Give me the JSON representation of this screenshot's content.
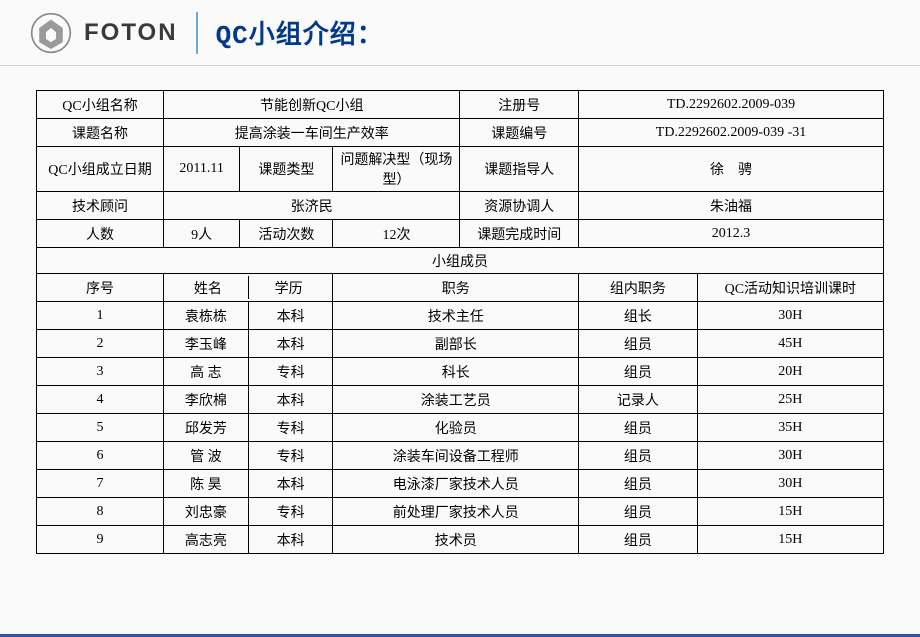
{
  "header": {
    "logo_text": "FOTON",
    "title": "QC小组介绍："
  },
  "info": {
    "group_name_label": "QC小组名称",
    "group_name": "节能创新QC小组",
    "reg_no_label": "注册号",
    "reg_no": "TD.2292602.2009-039",
    "topic_name_label": "课题名称",
    "topic_name": "提高涂装一车间生产效率",
    "topic_no_label": "课题编号",
    "topic_no": "TD.2292602.2009-039 -31",
    "found_date_label": "QC小组成立日期",
    "found_date": "2011.11",
    "topic_type_label": "课题类型",
    "topic_type": "问题解决型（现场型）",
    "topic_leader_label": "课题指导人",
    "topic_leader": "徐　骋",
    "tech_advisor_label": "技术顾问",
    "tech_advisor": "张济民",
    "resource_coord_label": "资源协调人",
    "resource_coord": "朱油福",
    "count_label": "人数",
    "count": "9人",
    "activity_count_label": "活动次数",
    "activity_count": "12次",
    "complete_time_label": "课题完成时间",
    "complete_time": "2012.3"
  },
  "members": {
    "title": "小组成员",
    "columns": {
      "no": "序号",
      "name": "姓名",
      "edu": "学历",
      "position": "职务",
      "role": "组内职务",
      "training": "QC活动知识培训课时"
    },
    "rows": [
      {
        "no": "1",
        "name": "袁栋栋",
        "edu": "本科",
        "position": "技术主任",
        "role": "组长",
        "training": "30H"
      },
      {
        "no": "2",
        "name": "李玉峰",
        "edu": "本科",
        "position": "副部长",
        "role": "组员",
        "training": "45H"
      },
      {
        "no": "3",
        "name": "高 志",
        "edu": "专科",
        "position": "科长",
        "role": "组员",
        "training": "20H"
      },
      {
        "no": "4",
        "name": "李欣棉",
        "edu": "本科",
        "position": "涂装工艺员",
        "role": "记录人",
        "training": "25H"
      },
      {
        "no": "5",
        "name": "邱发芳",
        "edu": "专科",
        "position": "化验员",
        "role": "组员",
        "training": "35H"
      },
      {
        "no": "6",
        "name": "管 波",
        "edu": "专科",
        "position": "涂装车间设备工程师",
        "role": "组员",
        "training": "30H"
      },
      {
        "no": "7",
        "name": "陈 昊",
        "edu": "本科",
        "position": "电泳漆厂家技术人员",
        "role": "组员",
        "training": "30H"
      },
      {
        "no": "8",
        "name": "刘忠豪",
        "edu": "专科",
        "position": "前处理厂家技术人员",
        "role": "组员",
        "training": "15H"
      },
      {
        "no": "9",
        "name": "高志亮",
        "edu": "本科",
        "position": "技术员",
        "role": "组员",
        "training": "15H"
      }
    ]
  },
  "style": {
    "border_color": "#000000",
    "background": "#fafafa",
    "title_color": "#003a8c",
    "divider_color": "#6aa9d8",
    "bottom_border": "#2c5aa0",
    "font_size_cell": 14,
    "font_size_title": 26
  }
}
